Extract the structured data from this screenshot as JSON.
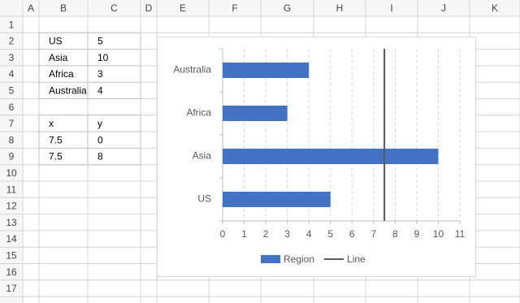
{
  "sheet": {
    "columns": [
      "A",
      "B",
      "C",
      "D",
      "E",
      "F",
      "G",
      "H",
      "I",
      "J",
      "K"
    ],
    "rows": [
      1,
      2,
      3,
      4,
      5,
      6,
      7,
      8,
      9,
      10,
      11,
      12,
      13,
      14,
      15,
      16,
      17
    ],
    "table1": {
      "rows": [
        [
          "US",
          5
        ],
        [
          "Asia",
          10
        ],
        [
          "Africa",
          3
        ],
        [
          "Australia",
          4
        ]
      ]
    },
    "table2": {
      "rows": [
        [
          "x",
          "y"
        ],
        [
          7.5,
          0
        ],
        [
          7.5,
          8
        ]
      ]
    }
  },
  "chart_data": {
    "type": "bar",
    "orientation": "horizontal",
    "categories": [
      "US",
      "Asia",
      "Africa",
      "Australia"
    ],
    "series": [
      {
        "name": "Region",
        "color": "#4472c4",
        "values": [
          5,
          10,
          3,
          4
        ]
      },
      {
        "name": "Line",
        "type": "line",
        "color": "#595959",
        "axis": "y2",
        "x": [
          7.5,
          7.5
        ],
        "values": [
          0,
          8
        ]
      }
    ],
    "xlim": [
      0,
      11
    ],
    "xticks": [
      0,
      1,
      2,
      3,
      4,
      5,
      6,
      7,
      8,
      9,
      10,
      11
    ],
    "y2lim": [
      0,
      8
    ],
    "grid": true,
    "legend": "bottom"
  }
}
